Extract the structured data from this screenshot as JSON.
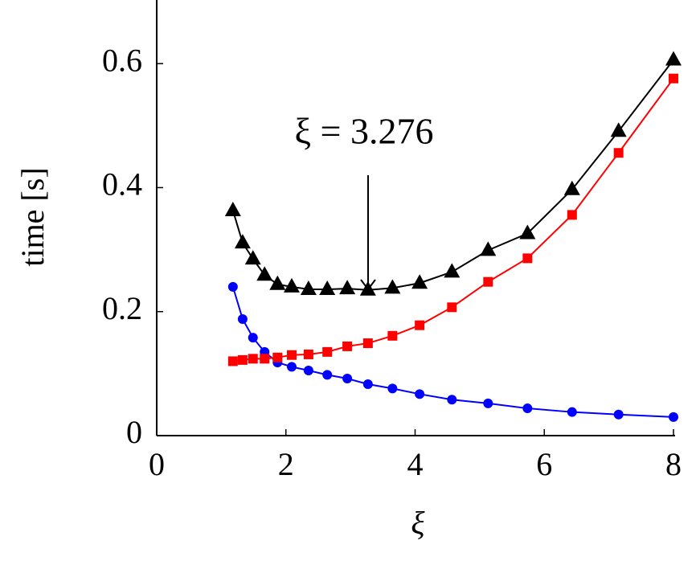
{
  "chart_data": {
    "type": "line",
    "annotation": "ξ = 3.276",
    "x_label": "ξ",
    "y_label": "time [s]",
    "xlim": [
      0,
      8
    ],
    "ylim": [
      0,
      0.7
    ],
    "xticks": [
      0,
      2,
      4,
      6,
      8
    ],
    "yticks": [
      0,
      0.2,
      0.4,
      0.6
    ],
    "series": [
      {
        "color": "#0000ff",
        "marker": "circle",
        "x": [
          1.18,
          1.33,
          1.49,
          1.67,
          1.87,
          2.09,
          2.35,
          2.64,
          2.95,
          3.27,
          3.65,
          4.07,
          4.57,
          5.13,
          5.74,
          6.43,
          7.15,
          8.0
        ],
        "values": [
          0.24,
          0.188,
          0.158,
          0.135,
          0.118,
          0.111,
          0.105,
          0.098,
          0.092,
          0.083,
          0.076,
          0.067,
          0.058,
          0.052,
          0.044,
          0.038,
          0.034,
          0.03
        ]
      },
      {
        "color": "#ff0000",
        "marker": "square",
        "x": [
          1.18,
          1.33,
          1.49,
          1.67,
          1.87,
          2.09,
          2.35,
          2.64,
          2.95,
          3.27,
          3.65,
          4.07,
          4.57,
          5.13,
          5.74,
          6.43,
          7.15,
          8.0
        ],
        "values": [
          0.12,
          0.122,
          0.124,
          0.124,
          0.126,
          0.13,
          0.131,
          0.135,
          0.144,
          0.149,
          0.161,
          0.178,
          0.207,
          0.248,
          0.286,
          0.356,
          0.456,
          0.576
        ]
      },
      {
        "color": "#000000",
        "marker": "triangle",
        "x": [
          1.18,
          1.33,
          1.49,
          1.67,
          1.87,
          2.09,
          2.35,
          2.64,
          2.95,
          3.27,
          3.65,
          4.07,
          4.57,
          5.13,
          5.74,
          6.43,
          7.15,
          8.0
        ],
        "values": [
          0.363,
          0.311,
          0.285,
          0.259,
          0.244,
          0.24,
          0.236,
          0.236,
          0.237,
          0.235,
          0.238,
          0.246,
          0.264,
          0.299,
          0.326,
          0.397,
          0.491,
          0.606
        ]
      }
    ]
  }
}
